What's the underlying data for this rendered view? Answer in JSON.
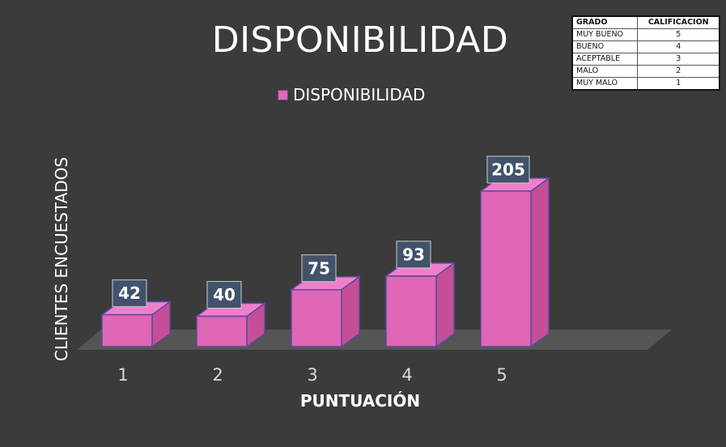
{
  "chart_data": {
    "type": "bar",
    "title": "DISPONIBILIDAD",
    "xlabel": "PUNTUACIÓN",
    "ylabel": "CLIENTES ENCUESTADOS",
    "categories": [
      "1",
      "2",
      "3",
      "4",
      "5"
    ],
    "series": [
      {
        "name": "DISPONIBILIDAD",
        "values": [
          42,
          40,
          75,
          93,
          205
        ]
      }
    ],
    "legend": "top-center",
    "grid": false,
    "style": "3d-column",
    "colors": {
      "bar_front": "#e066b6",
      "bar_side": "#c44f98",
      "bar_top": "#f07fcb",
      "edge": "#5b4a9e",
      "floor": "#555555",
      "label_box": "#41526a"
    }
  },
  "reference_table": {
    "headers": [
      "GRADO",
      "CALIFICACION"
    ],
    "rows": [
      [
        "MUY BUENO",
        "5"
      ],
      [
        "BUENO",
        "4"
      ],
      [
        "ACEPTABLE",
        "3"
      ],
      [
        "MALO",
        "2"
      ],
      [
        "MUY MALO",
        "1"
      ]
    ]
  }
}
